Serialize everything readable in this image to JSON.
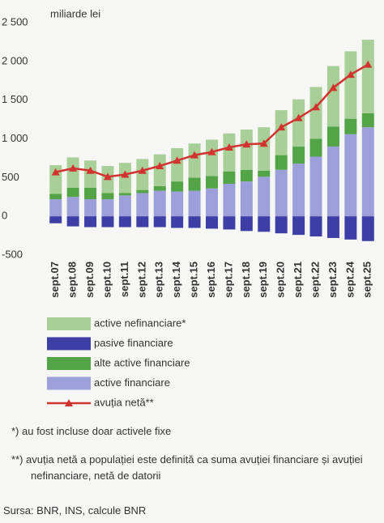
{
  "chart_data": {
    "type": "bar",
    "stacked": true,
    "y_label": "miliarde lei",
    "categories": [
      "sept.07",
      "sept.08",
      "sept.09",
      "sept.10",
      "sept.11",
      "sept.12",
      "sept.13",
      "sept.14",
      "sept.15",
      "sept.16",
      "sept.17",
      "sept.18",
      "sept.19",
      "sept.20",
      "sept.21",
      "sept.22",
      "sept.23",
      "sept.24",
      "sept.25"
    ],
    "series": [
      {
        "name": "active nefinanciare*",
        "color": "#a9cf98",
        "values": [
          370,
          390,
          350,
          350,
          390,
          400,
          410,
          430,
          440,
          470,
          490,
          520,
          560,
          580,
          610,
          670,
          780,
          870,
          950
        ]
      },
      {
        "name": "pasive financiare",
        "color": "#3d3fa6",
        "values": [
          -90,
          -130,
          -140,
          -140,
          -140,
          -140,
          -140,
          -150,
          -150,
          -160,
          -170,
          -190,
          -200,
          -220,
          -240,
          -260,
          -280,
          -300,
          -320
        ]
      },
      {
        "name": "alte active financiare",
        "color": "#52a447",
        "values": [
          70,
          120,
          150,
          80,
          30,
          40,
          60,
          130,
          170,
          160,
          160,
          150,
          80,
          190,
          220,
          230,
          260,
          200,
          180
        ]
      },
      {
        "name": "active financiare",
        "color": "#9c9fda",
        "values": [
          220,
          250,
          220,
          220,
          270,
          300,
          330,
          320,
          330,
          360,
          420,
          450,
          510,
          600,
          680,
          770,
          900,
          1060,
          1150
        ]
      },
      {
        "name": "avuția netă**",
        "color": "#d2332f",
        "type": "line",
        "values": [
          570,
          620,
          590,
          510,
          540,
          590,
          650,
          720,
          790,
          830,
          890,
          930,
          940,
          1150,
          1270,
          1410,
          1660,
          1830,
          1960
        ]
      }
    ],
    "ylim": [
      -500,
      2500
    ],
    "yticks": [
      {
        "value": 2500,
        "label": "2 500"
      },
      {
        "value": 2000,
        "label": "2 000"
      },
      {
        "value": 1500,
        "label": "1 500"
      },
      {
        "value": 1000,
        "label": "1 000"
      },
      500,
      0,
      -500
    ],
    "notes": [
      "*) au fost incluse doar activele fixe",
      "**) avuția netă a populației este definită ca suma avuției financiare și avuției nefinanciare, netă de datorii"
    ],
    "source": "Sursa: BNR, INS, calcule BNR"
  }
}
